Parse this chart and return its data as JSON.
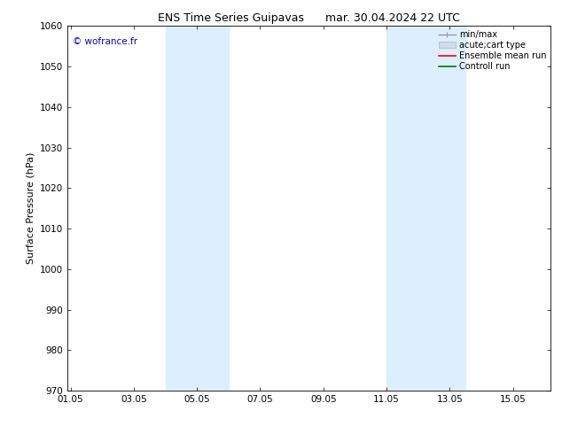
{
  "title_left": "ENS Time Series Guipavas",
  "title_right": "mar. 30.04.2024 22 UTC",
  "ylabel": "Surface Pressure (hPa)",
  "ylim": [
    970,
    1060
  ],
  "yticks": [
    970,
    980,
    990,
    1000,
    1010,
    1020,
    1030,
    1040,
    1050,
    1060
  ],
  "xtick_labels": [
    "01.05",
    "03.05",
    "05.05",
    "07.05",
    "09.05",
    "11.05",
    "13.05",
    "15.05"
  ],
  "xtick_positions": [
    0,
    2,
    4,
    6,
    8,
    10,
    12,
    14
  ],
  "xlim": [
    -0.1,
    15.2
  ],
  "shaded_regions": [
    {
      "xstart": 3.0,
      "xend": 4.0,
      "color": "#ddeeff"
    },
    {
      "xstart": 4.0,
      "xend": 5.0,
      "color": "#ddeeff"
    },
    {
      "xstart": 10.0,
      "xend": 11.0,
      "color": "#ddeeff"
    },
    {
      "xstart": 11.0,
      "xend": 12.5,
      "color": "#ddeeff"
    }
  ],
  "background_color": "#ffffff",
  "watermark": "© wofrance.fr",
  "watermark_color": "#0000cc",
  "legend_items": [
    {
      "label": "min/max",
      "color": "#999999",
      "lw": 1.0,
      "style": "minmax"
    },
    {
      "label": "acute;cart type",
      "color": "#ccdded",
      "lw": 6,
      "style": "fill"
    },
    {
      "label": "Ensemble mean run",
      "color": "#ff0000",
      "lw": 1.2,
      "style": "line"
    },
    {
      "label": "Controll run",
      "color": "#007700",
      "lw": 1.2,
      "style": "line"
    }
  ],
  "title_fontsize": 9,
  "axis_label_fontsize": 8,
  "tick_fontsize": 7.5,
  "legend_fontsize": 7
}
